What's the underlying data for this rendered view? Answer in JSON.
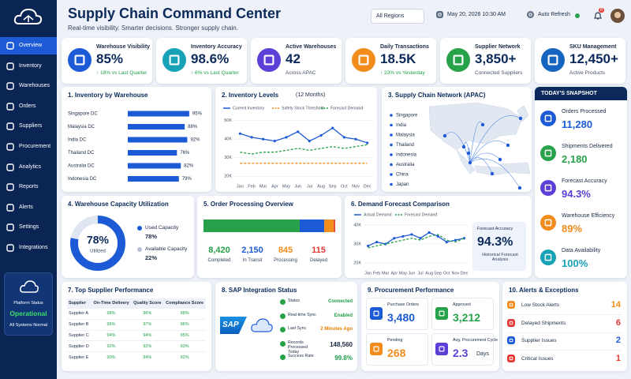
{
  "sidebar": {
    "nav": [
      "Overview",
      "Inventory",
      "Warehouses",
      "Orders",
      "Suppliers",
      "Procurement",
      "Analytics",
      "Reports",
      "Alerts",
      "Settings",
      "Integrations"
    ],
    "status": {
      "label": "Platform Status",
      "value": "Operational",
      "note": "All Systems Normal"
    }
  },
  "header": {
    "title": "Supply Chain Command Center",
    "subtitle": "Real-time visibility. Smarter decisions. Stronger supply chain.",
    "region": "All Regions",
    "date": "May 20, 2026  10:30 AM",
    "refresh": "Auto Refresh",
    "notifications": "8"
  },
  "kpis": [
    {
      "label": "Warehouse Visibility",
      "value": "85%",
      "note": "↑ 18% vs Last Quarter",
      "color": "#1d5bd6",
      "note_color": "#1e9e4a"
    },
    {
      "label": "Inventory Accuracy",
      "value": "98.6%",
      "note": "↑ 6% vs Last Quarter",
      "color": "#17a2b8",
      "note_color": "#1e9e4a"
    },
    {
      "label": "Active Warehouses",
      "value": "42",
      "note": "Across APAC",
      "color": "#5b3fd6",
      "note_color": "#4a5568"
    },
    {
      "label": "Daily Transactions",
      "value": "18.5K",
      "note": "↑ 23% vs Yesterday",
      "color": "#f28c1c",
      "note_color": "#1e9e4a"
    },
    {
      "label": "Supplier Network",
      "value": "3,850+",
      "note": "Connected Suppliers",
      "color": "#27a24a",
      "note_color": "#4a5568"
    },
    {
      "label": "SKU Management",
      "value": "12,450+",
      "note": "Active Products",
      "color": "#1565c0",
      "note_color": "#4a5568"
    }
  ],
  "inventory_by_warehouse": {
    "title": "1.  Inventory by Warehouse",
    "chart": {
      "type": "bar",
      "categories": [
        "Singapore DC",
        "Malaysia DC",
        "India DC",
        "Thailand DC",
        "Australia DC",
        "Indonesia DC"
      ],
      "values": [
        95,
        88,
        92,
        76,
        82,
        79
      ],
      "value_labels": [
        "95%",
        "88%",
        "92%",
        "76%",
        "82%",
        "79%"
      ],
      "xlim": [
        0,
        100
      ],
      "color": "#1d5bd6"
    }
  },
  "inventory_levels": {
    "title": "2.  Inventory Levels",
    "subtitle": "(12 Months)",
    "chart": {
      "type": "line",
      "categories": [
        "Jan",
        "Feb",
        "Mar",
        "Apr",
        "May",
        "Jun",
        "Jul",
        "Aug",
        "Sep",
        "Oct",
        "Nov",
        "Dec"
      ],
      "ylim": [
        18000,
        52000
      ],
      "yticks": [
        {
          "value": 20000,
          "label": "20K"
        },
        {
          "value": 30000,
          "label": "30K"
        },
        {
          "value": 40000,
          "label": "40K"
        },
        {
          "value": 50000,
          "label": "50K"
        }
      ],
      "series": [
        {
          "name": "Current Inventory",
          "color": "#1d5bd6",
          "style": "solid",
          "values": [
            43000,
            41000,
            40000,
            39000,
            41000,
            44000,
            39000,
            42000,
            46000,
            41000,
            40000,
            38000
          ]
        },
        {
          "name": "Safety Stock Threshold",
          "color": "#f28c1c",
          "style": "dashed",
          "values": [
            27000,
            27000,
            27000,
            27000,
            27000,
            27000,
            27000,
            27000,
            27000,
            27000,
            27000,
            27000
          ]
        },
        {
          "name": "Forecast Demand",
          "color": "#27a24a",
          "style": "dashed",
          "values": [
            33000,
            32000,
            33000,
            33000,
            34000,
            35000,
            34000,
            35000,
            36000,
            35000,
            36000,
            37000
          ]
        }
      ]
    }
  },
  "network": {
    "title": "3.  Supply Chain Network (APAC)",
    "nodes": [
      "Singapore",
      "India",
      "Malaysia",
      "Thailand",
      "Indonesia",
      "Australia",
      "China",
      "Japan"
    ]
  },
  "snapshot": {
    "title": "TODAY'S SNAPSHOT",
    "items": [
      {
        "label": "Orders Processed",
        "value": "11,280",
        "color": "#1d5bd6"
      },
      {
        "label": "Shipments Delivered",
        "value": "2,180",
        "color": "#27a24a"
      },
      {
        "label": "Forecast Accuracy",
        "value": "94.3%",
        "color": "#5b3fd6"
      },
      {
        "label": "Warehouse Efficiency",
        "value": "89%",
        "color": "#f28c1c"
      },
      {
        "label": "Data Availability",
        "value": "100%",
        "color": "#17a2b8"
      }
    ]
  },
  "capacity": {
    "title": "4.  Warehouse Capacity Utilization",
    "chart": {
      "type": "donut",
      "categories": [
        "Used Capacity",
        "Available Capacity"
      ],
      "values": [
        78,
        22
      ],
      "value_labels": [
        "78%",
        "22%"
      ],
      "colors": [
        "#1d5bd6",
        "#dfe6f1"
      ],
      "center_label": "Utilized"
    }
  },
  "order_processing": {
    "title": "5.  Order Processing Overview",
    "chart": {
      "type": "stacked-bar",
      "categories": [
        "Completed",
        "In Transit",
        "Processing",
        "Delayed"
      ],
      "values": [
        8420,
        2150,
        845,
        115
      ],
      "value_labels": [
        "8,420",
        "2,150",
        "845",
        "115"
      ],
      "colors": [
        "#27a24a",
        "#1d5bd6",
        "#f28c1c",
        "#e53935"
      ]
    }
  },
  "demand_forecast": {
    "title": "6.  Demand Forecast Comparison",
    "chart": {
      "type": "line",
      "categories": [
        "Jan",
        "Feb",
        "Mar",
        "Apr",
        "May",
        "Jun",
        "Jul",
        "Aug",
        "Sep",
        "Oct",
        "Nov",
        "Dec"
      ],
      "ylim": [
        18000,
        42000
      ],
      "yticks": [
        {
          "value": 20000,
          "label": "20K"
        },
        {
          "value": 30000,
          "label": "30K"
        },
        {
          "value": 40000,
          "label": "40K"
        }
      ],
      "series": [
        {
          "name": "Actual Demand",
          "color": "#1d5bd6",
          "style": "solid",
          "values": [
            29000,
            31000,
            30000,
            33000,
            34000,
            35000,
            33000,
            36000,
            34000,
            31000,
            32000,
            33000
          ]
        },
        {
          "name": "Forecast Demand",
          "color": "#27a24a",
          "style": "dashed",
          "values": [
            28000,
            29000,
            30000,
            31000,
            32000,
            33000,
            32000,
            34000,
            35000,
            32000,
            31000,
            33000
          ]
        }
      ]
    },
    "accuracy": {
      "label": "Forecast Accuracy",
      "value": "94.3%",
      "note": "Historical Forecast Analysis"
    }
  },
  "suppliers": {
    "title": "7.  Top Supplier Performance",
    "columns": [
      "Supplier",
      "On-Time Delivery",
      "Quality Score",
      "Compliance Score"
    ],
    "rows": [
      [
        "Supplier A",
        "98%",
        "96%",
        "98%"
      ],
      [
        "Supplier B",
        "96%",
        "97%",
        "96%"
      ],
      [
        "Supplier C",
        "94%",
        "94%",
        "95%"
      ],
      [
        "Supplier D",
        "92%",
        "92%",
        "93%"
      ],
      [
        "Supplier E",
        "90%",
        "94%",
        "92%"
      ]
    ]
  },
  "sap": {
    "title": "8.  SAP Integration Status",
    "logo": "SAP",
    "rows": [
      {
        "label": "Status",
        "value": "Connected",
        "color": "#1e9e4a"
      },
      {
        "label": "Real-time Sync",
        "value": "Enabled",
        "color": "#1e9e4a"
      },
      {
        "label": "Last Sync",
        "value": "2 Minutes Ago",
        "color": "#e67e00"
      },
      {
        "label": "Records Processed Today",
        "value": "148,560",
        "color": "#1b2b45"
      },
      {
        "label": "Success Rate",
        "value": "99.8%",
        "color": "#1e9e4a"
      }
    ]
  },
  "procurement": {
    "title": "9.  Procurement Performance",
    "items": [
      {
        "label": "Purchase Orders",
        "value": "3,480",
        "unit": "",
        "color": "#1d5bd6"
      },
      {
        "label": "Approved",
        "value": "3,212",
        "unit": "",
        "color": "#27a24a"
      },
      {
        "label": "Pending",
        "value": "268",
        "unit": "",
        "color": "#f28c1c"
      },
      {
        "label": "Avg. Procurement Cycle",
        "value": "2.3",
        "unit": "Days",
        "color": "#5b3fd6"
      }
    ]
  },
  "alerts": {
    "title": "10.  Alerts & Exceptions",
    "items": [
      {
        "label": "Low Stock Alerts",
        "value": 14,
        "color": "#f28c1c"
      },
      {
        "label": "Delayed Shipments",
        "value": 6,
        "color": "#e53935"
      },
      {
        "label": "Supplier Issues",
        "value": 2,
        "color": "#1d5bd6"
      },
      {
        "label": "Critical Issues",
        "value": 1,
        "color": "#e53935"
      }
    ]
  }
}
